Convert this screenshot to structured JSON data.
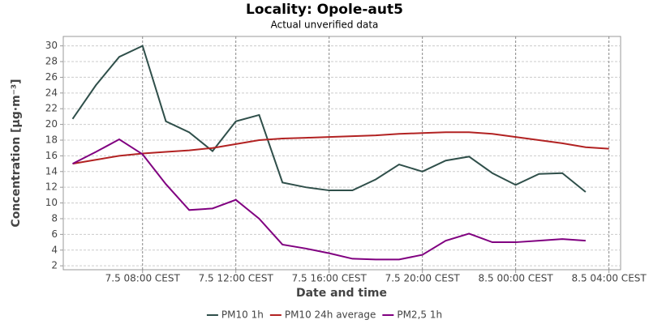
{
  "chart_data": {
    "type": "line",
    "title": "Locality: Opole-aut5",
    "subtitle": "Actual unverified data",
    "x_label": "Date and time",
    "y_label": "Concentration [µg·m⁻³]",
    "x": [
      5,
      6,
      7,
      8,
      9,
      10,
      11,
      12,
      13,
      14,
      15,
      16,
      17,
      18,
      19,
      20,
      21,
      22,
      23,
      24,
      25,
      26,
      27,
      28
    ],
    "xlim": [
      4.6,
      28.5
    ],
    "xticks": [
      {
        "value": 8,
        "label": "7.5 08:00 CEST"
      },
      {
        "value": 12,
        "label": "7.5 12:00 CEST"
      },
      {
        "value": 16,
        "label": "7.5 16:00 CEST"
      },
      {
        "value": 20,
        "label": "7.5 20:00 CEST"
      },
      {
        "value": 24,
        "label": "8.5 00:00 CEST"
      },
      {
        "value": 28,
        "label": "8.5 04:00 CEST"
      }
    ],
    "ylim": [
      1.5,
      31.2
    ],
    "yticks": [
      2,
      4,
      6,
      8,
      10,
      12,
      14,
      16,
      18,
      20,
      22,
      24,
      26,
      28,
      30
    ],
    "grid": true,
    "legend": "bottom",
    "series": [
      {
        "name": "PM10 1h",
        "color": "#2f4f4a",
        "values": [
          20.7,
          25,
          28.6,
          30,
          20.4,
          19,
          16.6,
          20.4,
          21.2,
          12.6,
          12,
          11.6,
          11.6,
          13,
          14.9,
          14,
          15.4,
          15.9,
          13.8,
          12.3,
          13.7,
          13.8,
          11.4,
          null
        ]
      },
      {
        "name": "PM10 24h average",
        "color": "#b22222",
        "values": [
          15,
          15.5,
          16,
          16.3,
          16.5,
          16.7,
          17,
          17.5,
          18,
          18.2,
          18.3,
          18.4,
          18.5,
          18.6,
          18.8,
          18.9,
          19,
          19,
          18.8,
          18.4,
          18,
          17.6,
          17.1,
          16.9
        ]
      },
      {
        "name": "PM2,5 1h",
        "color": "#800080",
        "values": [
          15,
          16.5,
          18.1,
          16.2,
          12.4,
          9.1,
          9.3,
          10.4,
          8,
          4.7,
          4.2,
          3.6,
          2.9,
          2.8,
          2.8,
          3.4,
          5.2,
          6.1,
          5,
          5,
          5.2,
          5.4,
          5.2,
          null
        ]
      }
    ]
  }
}
